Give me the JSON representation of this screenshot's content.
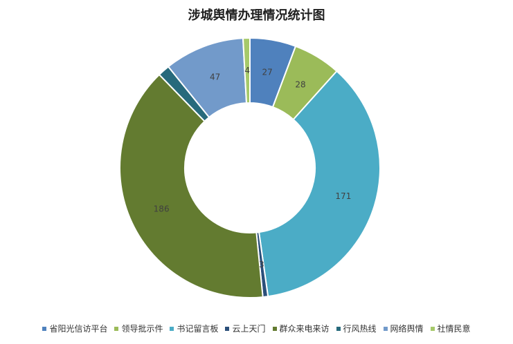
{
  "chart_data": {
    "type": "pie",
    "donut": true,
    "title": "涉城舆情办理情况统计图",
    "legend_position": "bottom",
    "categories": [
      "省阳光信访平台",
      "领导批示件",
      "书记留言板",
      "云上天门",
      "群众来电来访",
      "行风热线",
      "网络舆情",
      "社情民意"
    ],
    "values": [
      27,
      28,
      171,
      3,
      186,
      7,
      47,
      4
    ],
    "labels": [
      "27",
      "28",
      "171",
      "3",
      "186",
      "",
      "47",
      "4"
    ],
    "colors": [
      "#4f81bd",
      "#9bbb59",
      "#4bacc6",
      "#2b4f7a",
      "#637b30",
      "#276a7c",
      "#729aca",
      "#a6c96a"
    ]
  }
}
